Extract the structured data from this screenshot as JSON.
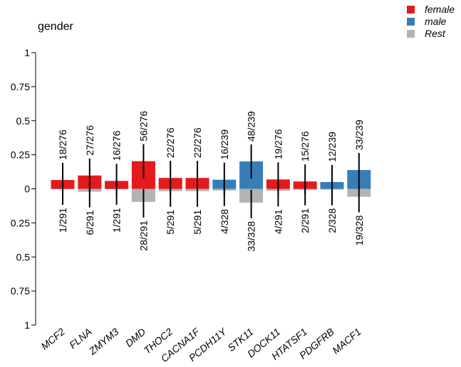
{
  "chart_data": {
    "type": "bar",
    "title": "gender",
    "xlabel": "",
    "ylabel": "",
    "ylim": [
      -1,
      1
    ],
    "y_ticks": [
      {
        "value": 1,
        "label": "1"
      },
      {
        "value": 0.75,
        "label": "0.75"
      },
      {
        "value": 0.5,
        "label": "0.5"
      },
      {
        "value": 0.25,
        "label": "0.25"
      },
      {
        "value": 0,
        "label": "0"
      },
      {
        "value": -0.25,
        "label": "0.25"
      },
      {
        "value": -0.5,
        "label": "0.5"
      },
      {
        "value": -0.75,
        "label": "0.75"
      },
      {
        "value": -1,
        "label": "1"
      }
    ],
    "legend": {
      "position": "top-right",
      "entries": [
        {
          "label": "female",
          "color": "#e41a1c"
        },
        {
          "label": "male",
          "color": "#377eb8"
        },
        {
          "label": "Rest",
          "color": "#b3b3b3"
        }
      ]
    },
    "categories": [
      "MCF2",
      "FLNA",
      "ZMYM3",
      "DMD",
      "THOC2",
      "CACNA1F",
      "PCDH11Y",
      "STK11",
      "DOCK11",
      "HTATSF1",
      "PDGFRB",
      "MACF1"
    ],
    "top_group": [
      "female",
      "female",
      "female",
      "female",
      "female",
      "female",
      "male",
      "male",
      "female",
      "female",
      "male",
      "male"
    ],
    "top_values": [
      0.065,
      0.098,
      0.058,
      0.203,
      0.08,
      0.08,
      0.067,
      0.201,
      0.069,
      0.054,
      0.05,
      0.138
    ],
    "top_labels": [
      "18/276",
      "27/276",
      "16/276",
      "56/276",
      "22/276",
      "22/276",
      "16/239",
      "48/239",
      "19/276",
      "15/276",
      "12/239",
      "33/239"
    ],
    "rest_values": [
      0.003,
      0.021,
      0.003,
      0.096,
      0.017,
      0.017,
      0.012,
      0.101,
      0.014,
      0.007,
      0.006,
      0.058
    ],
    "rest_labels": [
      "1/291",
      "6/291",
      "1/291",
      "28/291",
      "5/291",
      "5/291",
      "4/328",
      "33/328",
      "4/291",
      "2/291",
      "2/328",
      "19/328"
    ],
    "grid": false
  }
}
